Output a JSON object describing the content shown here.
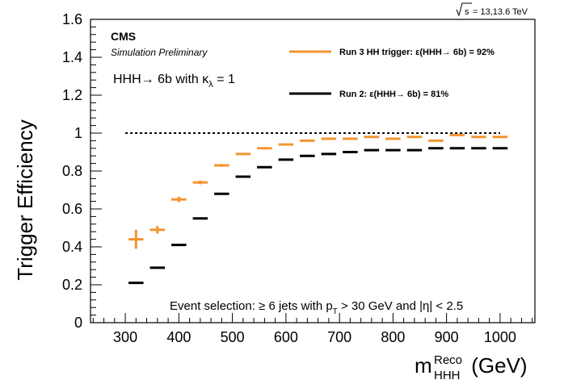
{
  "chart_data": {
    "type": "scatter",
    "energy_label": "= 13,13.6 TeV",
    "energy_prefix": "s",
    "experiment": "CMS",
    "subtitle": "Simulation Preliminary",
    "process": {
      "main": "HHH→ 6b with κ",
      "sub": "λ",
      "tail": " = 1"
    },
    "ylabel": "Trigger Efficiency",
    "xlabel": {
      "main": "m",
      "sup": "Reco",
      "sub": "HHH",
      "unit": " (GeV)"
    },
    "selection": {
      "part1": "Event selection: ≥ 6 jets with p",
      "sub": "T",
      "part2": " > 30 GeV and |η| < 2.5"
    },
    "xlim": [
      235,
      1065
    ],
    "ylim": [
      0,
      1.6
    ],
    "xticks": [
      300,
      400,
      500,
      600,
      700,
      800,
      900,
      1000
    ],
    "xtick_labels": [
      "300",
      "400",
      "500",
      "600",
      "700",
      "800",
      "900",
      "1000"
    ],
    "yticks": [
      0,
      0.2,
      0.4,
      0.6,
      0.8,
      1,
      1.2,
      1.4,
      1.6
    ],
    "ytick_labels": [
      "0",
      "0.2",
      "0.4",
      "0.6",
      "0.8",
      "1",
      "1.2",
      "1.4",
      "1.6"
    ],
    "reference_line": {
      "y": 1.0,
      "x": [
        300,
        1000
      ]
    },
    "series": [
      {
        "name": "Run 3 HH trigger: ε(HHH→ 6b) = 92%",
        "color": "#f39530",
        "x_low": [
          300,
          340,
          380,
          420,
          460,
          500,
          540,
          580,
          620,
          660,
          700,
          740,
          780,
          820,
          860,
          900,
          940,
          980
        ],
        "x_high": [
          340,
          380,
          420,
          460,
          500,
          540,
          580,
          620,
          660,
          700,
          740,
          780,
          820,
          860,
          900,
          940,
          980,
          1020
        ],
        "values": [
          0.44,
          0.49,
          0.65,
          0.74,
          0.83,
          0.89,
          0.92,
          0.94,
          0.96,
          0.97,
          0.97,
          0.98,
          0.97,
          0.98,
          0.96,
          0.99,
          0.98,
          0.98
        ],
        "errors": [
          0.05,
          0.02,
          0.015,
          0.01,
          0.008,
          0.006,
          0.006,
          0.005,
          0.005,
          0.005,
          0.005,
          0.005,
          0.005,
          0.005,
          0.005,
          0.005,
          0.005,
          0.005
        ]
      },
      {
        "name": "Run 2: ε(HHH→ 6b) = 81%",
        "color": "#000000",
        "x_low": [
          300,
          340,
          380,
          420,
          460,
          500,
          540,
          580,
          620,
          660,
          700,
          740,
          780,
          820,
          860,
          900,
          940,
          980
        ],
        "x_high": [
          340,
          380,
          420,
          460,
          500,
          540,
          580,
          620,
          660,
          700,
          740,
          780,
          820,
          860,
          900,
          940,
          980,
          1020
        ],
        "values": [
          0.21,
          0.29,
          0.41,
          0.55,
          0.68,
          0.77,
          0.82,
          0.86,
          0.88,
          0.89,
          0.9,
          0.91,
          0.91,
          0.91,
          0.92,
          0.92,
          0.92,
          0.92
        ],
        "errors": [
          0.004,
          0.004,
          0.004,
          0.004,
          0.004,
          0.004,
          0.004,
          0.004,
          0.004,
          0.004,
          0.004,
          0.004,
          0.004,
          0.004,
          0.004,
          0.004,
          0.004,
          0.004
        ]
      }
    ],
    "legend_position": "top-right"
  }
}
